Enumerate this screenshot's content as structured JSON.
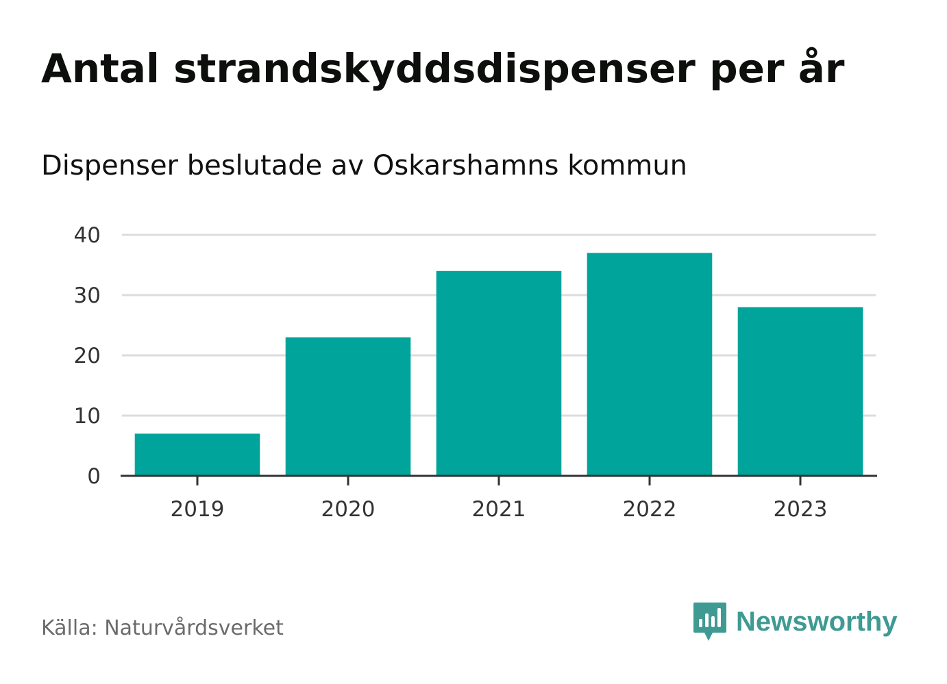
{
  "header": {
    "title": "Antal strandskyddsdispenser per år",
    "subtitle": "Dispenser beslutade av Oskarshamns kommun"
  },
  "footer": {
    "source": "Källa: Naturvårdsverket",
    "brand": "Newsworthy"
  },
  "colors": {
    "bar": "#00a49a",
    "grid": "#dcdcdc",
    "axis": "#333333",
    "brand": "#3f9a93"
  },
  "chart_data": {
    "type": "bar",
    "title": "Antal strandskyddsdispenser per år",
    "subtitle": "Dispenser beslutade av Oskarshamns kommun",
    "categories": [
      "2019",
      "2020",
      "2021",
      "2022",
      "2023"
    ],
    "values": [
      7,
      23,
      34,
      37,
      28
    ],
    "xlabel": "",
    "ylabel": "",
    "ylim": [
      0,
      40
    ],
    "yticks": [
      0,
      10,
      20,
      30,
      40
    ],
    "grid": true
  }
}
